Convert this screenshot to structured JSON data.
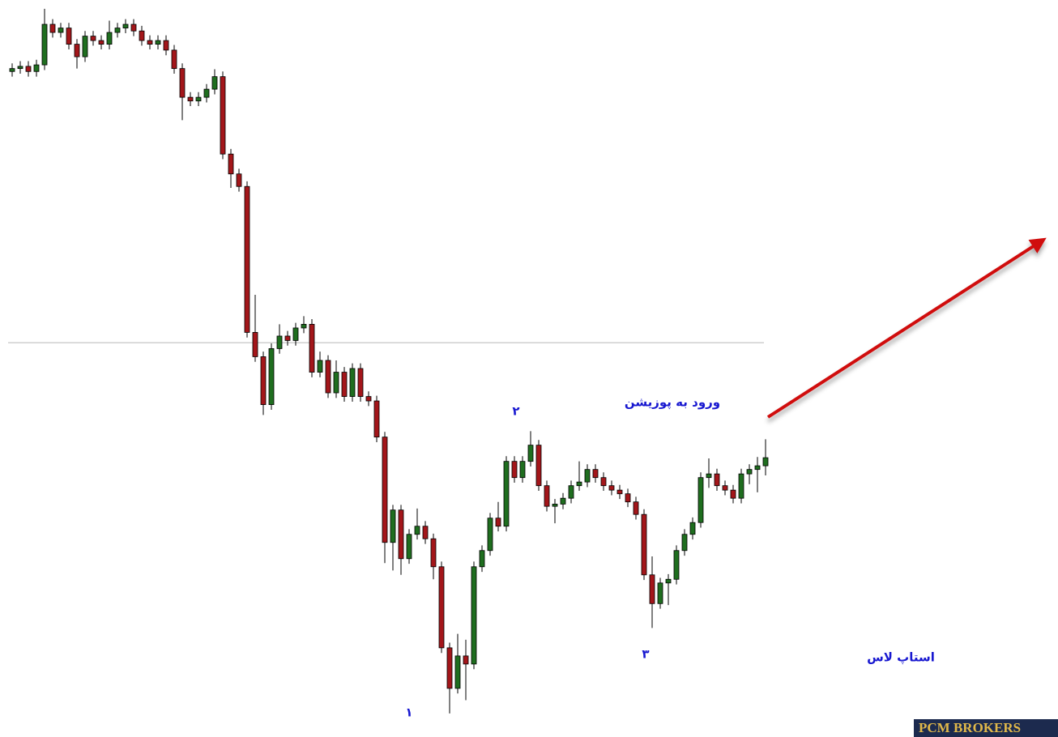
{
  "chart_data": {
    "type": "candlestick",
    "ylim": [
      0,
      100
    ],
    "up_color": "#1f6e1f",
    "down_color": "#a3161a",
    "outline_color": "#000000",
    "open": [
      90.3,
      90.7,
      91.0,
      90.3,
      91.2,
      96.7,
      95.6,
      96.2,
      94.0,
      92.3,
      95.1,
      94.5,
      94.0,
      95.6,
      96.2,
      96.7,
      95.8,
      94.5,
      94.0,
      94.5,
      93.2,
      90.7,
      86.8,
      86.3,
      86.8,
      87.9,
      89.6,
      79.1,
      76.4,
      74.7,
      54.9,
      51.6,
      45.1,
      52.7,
      54.4,
      53.8,
      55.5,
      56.0,
      49.5,
      51.1,
      46.7,
      49.5,
      46.2,
      50.0,
      46.2,
      45.6,
      40.7,
      26.4,
      30.8,
      24.2,
      27.5,
      28.6,
      26.9,
      23.1,
      12.1,
      6.6,
      11.0,
      9.9,
      23.1,
      25.3,
      29.7,
      28.6,
      37.4,
      35.2,
      37.4,
      39.6,
      34.1,
      31.3,
      31.6,
      32.4,
      34.1,
      34.6,
      36.3,
      35.2,
      34.1,
      33.5,
      33.0,
      31.9,
      30.2,
      22.0,
      18.1,
      20.9,
      21.4,
      25.3,
      27.5,
      29.1,
      35.2,
      35.7,
      34.1,
      33.5,
      32.4,
      35.7,
      36.3,
      36.8
    ],
    "high": [
      91.4,
      91.7,
      91.7,
      91.9,
      98.8,
      97.4,
      96.9,
      96.9,
      94.7,
      95.8,
      95.8,
      95.2,
      97.2,
      96.9,
      97.4,
      97.4,
      96.5,
      95.2,
      95.2,
      95.2,
      93.9,
      91.4,
      87.5,
      87.5,
      88.6,
      90.6,
      90.3,
      79.8,
      77.1,
      75.4,
      60.0,
      52.3,
      53.4,
      56.0,
      55.1,
      56.2,
      57.1,
      56.7,
      52.3,
      51.8,
      51.1,
      50.2,
      50.7,
      50.7,
      46.9,
      46.3,
      41.4,
      31.5,
      31.5,
      28.2,
      31.0,
      29.3,
      27.6,
      23.8,
      12.8,
      14.0,
      13.2,
      23.8,
      26.0,
      30.4,
      31.9,
      38.1,
      38.1,
      38.1,
      41.5,
      40.3,
      34.8,
      32.3,
      33.1,
      34.8,
      37.4,
      37.0,
      37.0,
      35.9,
      34.8,
      34.2,
      33.7,
      32.6,
      30.9,
      24.5,
      21.6,
      22.1,
      26.0,
      28.2,
      29.8,
      35.9,
      37.8,
      36.4,
      34.8,
      34.2,
      36.4,
      37.0,
      38.0,
      40.4
    ],
    "low": [
      89.6,
      90.0,
      89.6,
      89.6,
      90.5,
      94.9,
      94.9,
      93.3,
      90.7,
      91.6,
      93.8,
      93.3,
      93.3,
      94.9,
      95.5,
      95.1,
      93.8,
      93.3,
      93.3,
      92.5,
      90.0,
      83.7,
      85.6,
      85.6,
      86.1,
      87.2,
      78.4,
      74.5,
      74.0,
      54.2,
      50.9,
      43.7,
      44.4,
      52.0,
      53.1,
      53.1,
      54.8,
      48.8,
      48.8,
      46.0,
      46.0,
      45.5,
      45.5,
      45.5,
      44.9,
      40.0,
      23.6,
      22.6,
      22.0,
      23.5,
      26.8,
      26.2,
      21.4,
      11.4,
      3.2,
      5.9,
      5.0,
      9.2,
      22.4,
      24.6,
      27.9,
      27.9,
      34.5,
      34.5,
      36.7,
      33.4,
      30.6,
      29.0,
      30.9,
      31.7,
      33.4,
      33.9,
      34.5,
      33.4,
      32.8,
      32.3,
      31.2,
      29.5,
      21.3,
      14.8,
      17.4,
      17.9,
      20.7,
      24.6,
      26.8,
      28.4,
      33.8,
      33.4,
      32.8,
      31.7,
      31.7,
      34.3,
      33.2,
      35.5
    ],
    "close": [
      90.7,
      91.0,
      90.3,
      91.2,
      96.7,
      95.6,
      96.2,
      94.0,
      92.3,
      95.1,
      94.5,
      94.0,
      95.6,
      96.2,
      96.7,
      95.8,
      94.5,
      94.0,
      94.5,
      93.2,
      90.7,
      86.8,
      86.3,
      86.8,
      87.9,
      89.6,
      79.1,
      76.4,
      74.7,
      54.9,
      51.6,
      45.1,
      52.7,
      54.4,
      53.8,
      55.5,
      56.0,
      49.5,
      51.1,
      46.7,
      49.5,
      46.2,
      50.0,
      46.2,
      45.6,
      40.7,
      26.4,
      30.8,
      24.2,
      27.5,
      28.6,
      26.9,
      23.1,
      12.1,
      6.6,
      11.0,
      9.9,
      23.1,
      25.3,
      29.7,
      28.6,
      37.4,
      35.2,
      37.4,
      39.6,
      34.1,
      31.3,
      31.6,
      32.4,
      34.1,
      34.6,
      36.3,
      35.2,
      34.1,
      33.5,
      33.0,
      31.9,
      30.2,
      22.0,
      18.1,
      20.9,
      21.4,
      25.3,
      27.5,
      29.1,
      35.2,
      35.7,
      34.1,
      33.5,
      32.4,
      35.7,
      36.3,
      36.8,
      37.9
    ],
    "reference_line": 53.5,
    "entry_level": 40.3,
    "stop_level": 13.7,
    "level_color": "#1a1f6e",
    "annotations": {
      "entry": "ورود به پوزیشن",
      "stop": "استاپ لاس",
      "point1": "۱",
      "point2": "۲",
      "point3": "۳"
    },
    "watermark": "PCM BROKERS"
  }
}
